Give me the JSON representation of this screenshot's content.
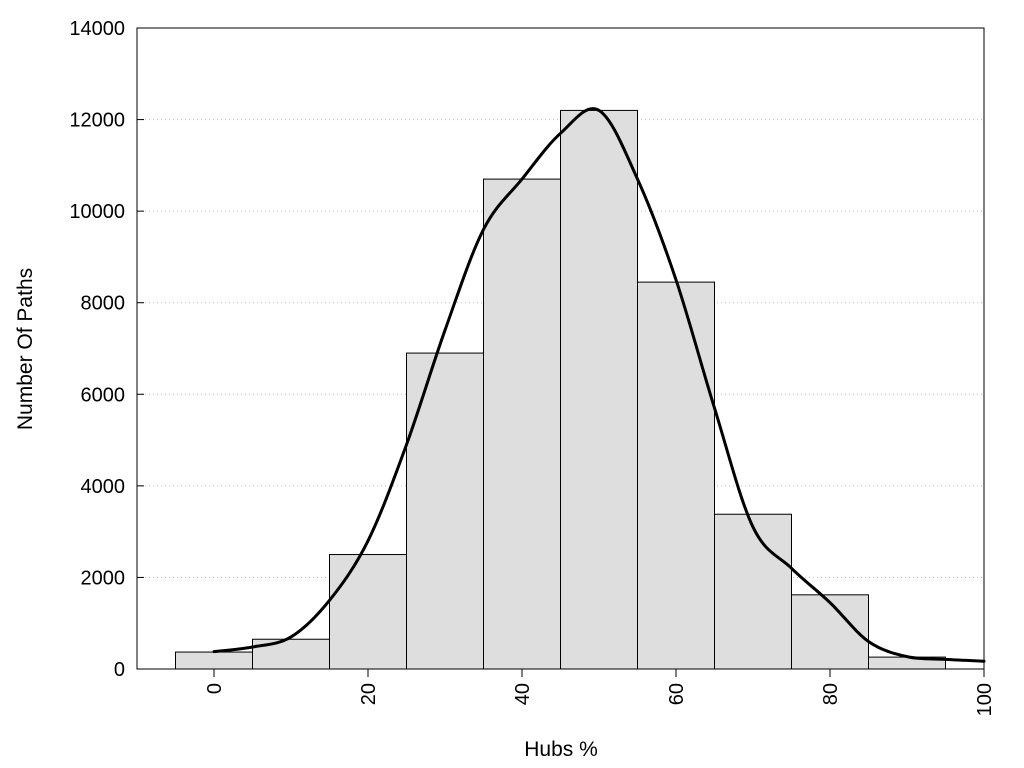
{
  "chart_data": {
    "type": "bar",
    "title": "",
    "xlabel": "Hubs %",
    "ylabel": "Number Of Paths",
    "xlim": [
      -10,
      100
    ],
    "ylim": [
      0,
      14000
    ],
    "x_ticks": [
      0,
      20,
      40,
      60,
      80,
      100
    ],
    "x_tick_labels": [
      "0",
      "20",
      "40",
      "60",
      "80",
      "100"
    ],
    "y_ticks": [
      0,
      2000,
      4000,
      6000,
      8000,
      10000,
      12000,
      14000
    ],
    "y_tick_labels": [
      "0",
      "2000",
      "4000",
      "6000",
      "8000",
      "10000",
      "12000",
      "14000"
    ],
    "grid": "horizontal dotted",
    "legend": "none",
    "bin_width": 10,
    "categories": [
      "0",
      "10",
      "20",
      "30",
      "40",
      "50",
      "60",
      "70",
      "80",
      "90"
    ],
    "x": [
      0,
      10,
      20,
      30,
      40,
      50,
      60,
      70,
      80,
      90
    ],
    "values": [
      370,
      650,
      2500,
      6900,
      10700,
      12200,
      8450,
      3380,
      1620,
      260
    ],
    "density_curve": {
      "x": [
        0,
        5,
        10,
        15,
        20,
        25,
        30,
        35,
        40,
        45,
        50,
        55,
        60,
        65,
        70,
        75,
        80,
        85,
        90,
        95,
        100
      ],
      "y": [
        380,
        480,
        700,
        1500,
        2800,
        4900,
        7400,
        9600,
        10700,
        11700,
        12200,
        10700,
        8500,
        5700,
        3100,
        2200,
        1450,
        600,
        270,
        210,
        170
      ]
    },
    "colors": {
      "bar_fill": "#dedede",
      "bar_stroke": "#000000",
      "curve": "#000000",
      "grid": "#bbbbbb"
    }
  }
}
